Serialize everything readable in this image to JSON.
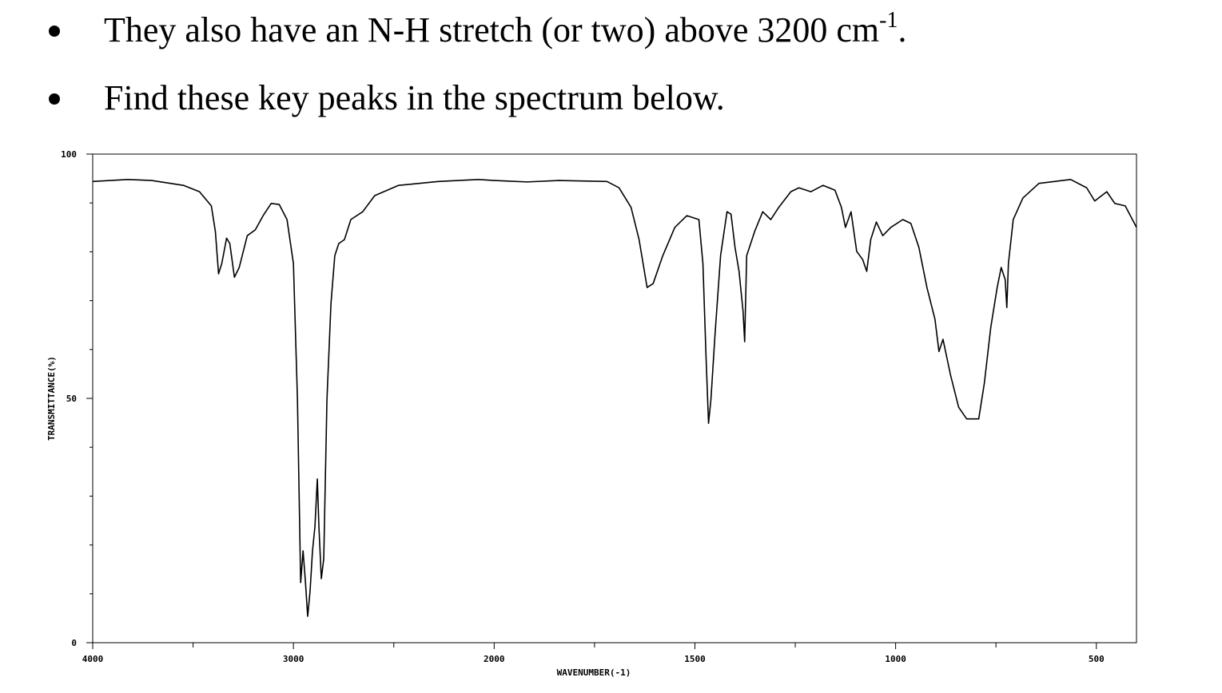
{
  "bullets": [
    {
      "text": "They also have an N-H stretch (or two) above 3200 cm",
      "superscript": "-1",
      "end": "."
    },
    {
      "text": "Find these key peaks in the spectrum below."
    }
  ],
  "chart_data": {
    "type": "line",
    "xlabel": "WAVENUMBER(-1)",
    "ylabel": "TRANSMITTANCE(%)",
    "xlim": [
      4000,
      400
    ],
    "ylim": [
      0,
      100
    ],
    "x_scale_change": 2000,
    "xticks": [
      4000,
      3000,
      2000,
      1500,
      1000,
      500
    ],
    "xminorticks": [
      3500,
      2500,
      1750,
      1250,
      750
    ],
    "yticks": [
      0,
      50,
      100
    ],
    "yminorticks": [
      10,
      20,
      30,
      40,
      60,
      70,
      80,
      90
    ],
    "series": [
      {
        "color": "#000000",
        "x": [
          4000,
          3825,
          3706,
          3548,
          3468,
          3409,
          3389,
          3373,
          3357,
          3333,
          3317,
          3294,
          3270,
          3230,
          3190,
          3151,
          3111,
          3071,
          3032,
          3000,
          2980,
          2964,
          2952,
          2940,
          2929,
          2917,
          2905,
          2893,
          2881,
          2873,
          2861,
          2849,
          2833,
          2813,
          2794,
          2774,
          2746,
          2714,
          2655,
          2595,
          2476,
          2278,
          2079,
          2000,
          1918,
          1839,
          1719,
          1689,
          1659,
          1639,
          1619,
          1604,
          1580,
          1550,
          1520,
          1490,
          1480,
          1472,
          1466,
          1460,
          1450,
          1436,
          1420,
          1410,
          1400,
          1390,
          1380,
          1376,
          1371,
          1351,
          1331,
          1311,
          1291,
          1261,
          1241,
          1211,
          1181,
          1151,
          1135,
          1125,
          1111,
          1097,
          1082,
          1072,
          1062,
          1048,
          1032,
          1012,
          982,
          962,
          942,
          922,
          902,
          892,
          882,
          863,
          843,
          823,
          793,
          779,
          763,
          747,
          737,
          727,
          723,
          719,
          707,
          683,
          643,
          564,
          524,
          504,
          474,
          454,
          428,
          400
        ],
        "values": [
          94.4,
          94.8,
          94.6,
          93.6,
          92.3,
          89.4,
          84.2,
          75.5,
          77.6,
          82.8,
          81.7,
          74.8,
          76.8,
          83.3,
          84.5,
          87.4,
          89.9,
          89.7,
          86.6,
          77.6,
          49.8,
          12.3,
          18.8,
          12.3,
          5.4,
          10.6,
          18.8,
          23.7,
          33.5,
          23.7,
          13.1,
          17.2,
          49.8,
          69.4,
          79.2,
          81.7,
          82.5,
          86.6,
          88.2,
          91.5,
          93.6,
          94.4,
          94.8,
          94.6,
          94.3,
          94.6,
          94.4,
          93.1,
          89.1,
          82.5,
          72.7,
          73.5,
          79.2,
          85.0,
          87.4,
          86.6,
          77.6,
          58.0,
          44.9,
          49.8,
          62.9,
          79.2,
          88.2,
          87.7,
          80.9,
          76.0,
          67.8,
          61.6,
          79.2,
          84.2,
          88.2,
          86.6,
          89.1,
          92.3,
          93.1,
          92.3,
          93.6,
          92.6,
          89.1,
          85.0,
          88.2,
          80.1,
          78.4,
          76.0,
          82.5,
          86.1,
          83.3,
          85.0,
          86.6,
          85.8,
          80.9,
          72.7,
          66.2,
          59.6,
          62.1,
          54.7,
          48.2,
          45.8,
          45.8,
          53.1,
          64.5,
          72.7,
          76.8,
          74.3,
          68.6,
          77.6,
          86.6,
          91.0,
          94.0,
          94.8,
          93.1,
          90.4,
          92.3,
          89.9,
          89.4,
          85.0
        ]
      }
    ]
  }
}
